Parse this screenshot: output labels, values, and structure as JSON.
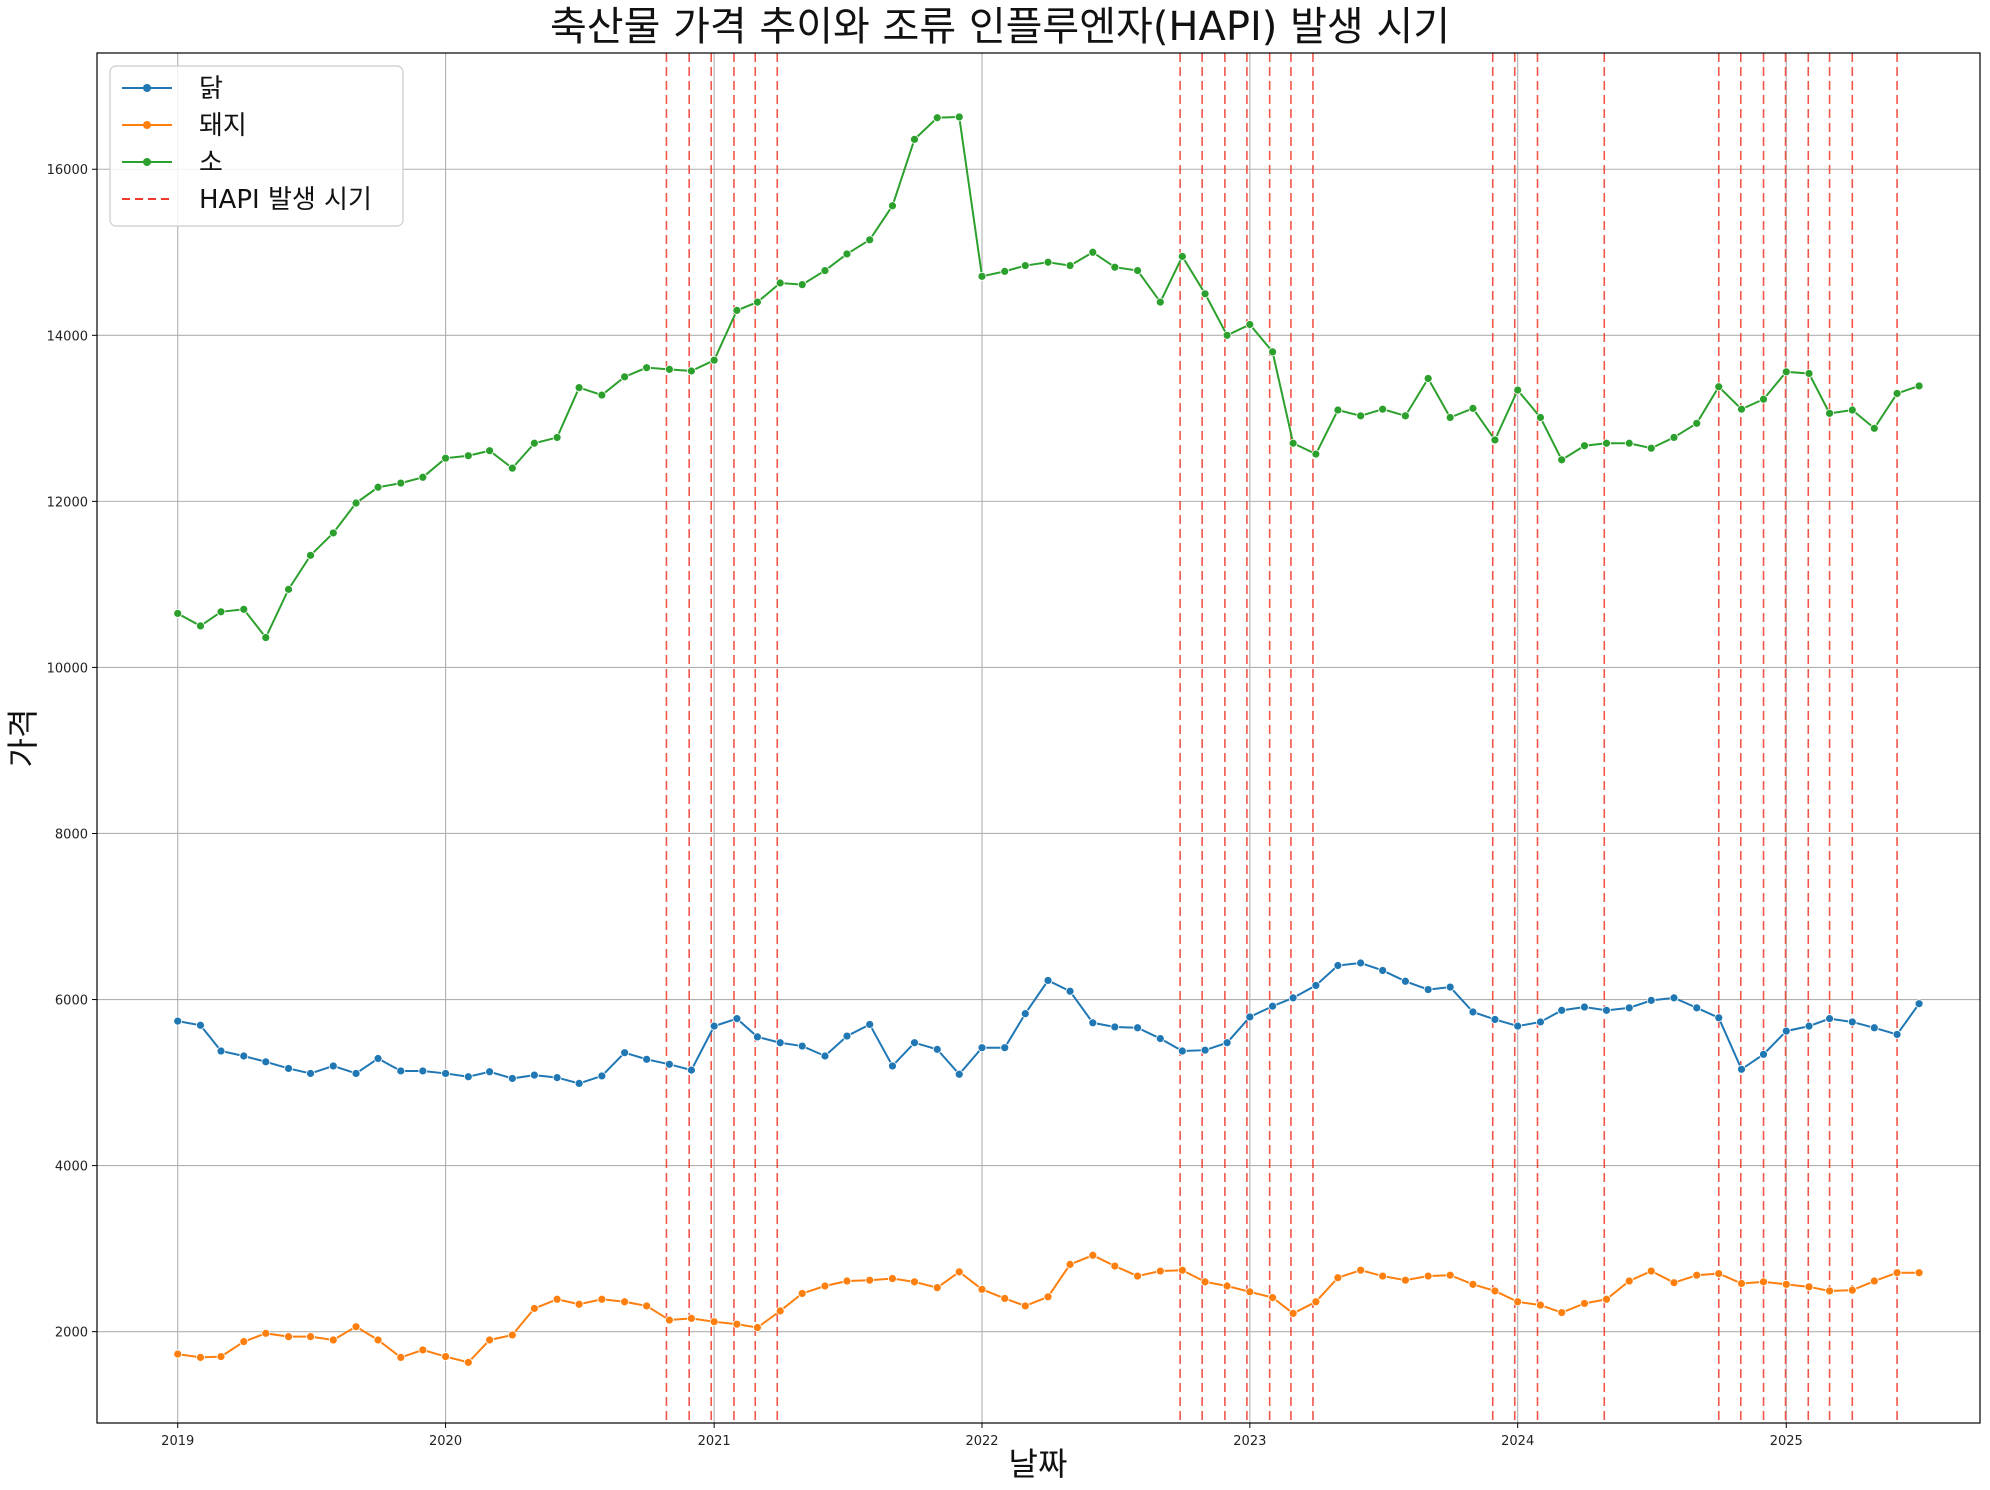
{
  "chart_data": {
    "type": "line",
    "title": "축산물 가격 추이와 조류 인플루엔자(HAPI) 발생 시기",
    "xlabel": "날짜",
    "ylabel": "가격",
    "x_ticks": [
      "2019",
      "2020",
      "2021",
      "2022",
      "2023",
      "2024",
      "2025"
    ],
    "y_ticks": [
      2000,
      4000,
      6000,
      8000,
      10000,
      12000,
      14000,
      16000
    ],
    "xlim": [
      "2018-09-13",
      "2025-09-22"
    ],
    "ylim": [
      900,
      17400
    ],
    "grid": true,
    "legend_position": "top-left",
    "x": [
      "2019-01",
      "2019-02",
      "2019-03",
      "2019-04",
      "2019-05",
      "2019-06",
      "2019-07",
      "2019-08",
      "2019-09",
      "2019-10",
      "2019-11",
      "2019-12",
      "2020-01",
      "2020-02",
      "2020-03",
      "2020-04",
      "2020-05",
      "2020-06",
      "2020-07",
      "2020-08",
      "2020-09",
      "2020-10",
      "2020-11",
      "2020-12",
      "2021-01",
      "2021-02",
      "2021-03",
      "2021-04",
      "2021-05",
      "2021-06",
      "2021-07",
      "2021-08",
      "2021-09",
      "2021-10",
      "2021-11",
      "2021-12",
      "2022-01",
      "2022-02",
      "2022-03",
      "2022-04",
      "2022-05",
      "2022-06",
      "2022-07",
      "2022-08",
      "2022-09",
      "2022-10",
      "2022-11",
      "2022-12",
      "2023-01",
      "2023-02",
      "2023-03",
      "2023-04",
      "2023-05",
      "2023-06",
      "2023-07",
      "2023-08",
      "2023-09",
      "2023-10",
      "2023-11",
      "2023-12",
      "2024-01",
      "2024-02",
      "2024-03",
      "2024-04",
      "2024-05",
      "2024-06",
      "2024-07",
      "2024-08",
      "2024-09",
      "2024-10",
      "2024-11",
      "2024-12",
      "2025-01",
      "2025-02",
      "2025-03",
      "2025-04",
      "2025-05",
      "2025-06",
      "2025-07"
    ],
    "series": [
      {
        "name": "닭",
        "color": "#1f77b4",
        "values": [
          5740,
          5690,
          5380,
          5320,
          5250,
          5170,
          5110,
          5200,
          5110,
          5290,
          5140,
          5140,
          5110,
          5070,
          5130,
          5050,
          5090,
          5060,
          4990,
          5080,
          5360,
          5280,
          5220,
          5150,
          5680,
          5770,
          5550,
          5480,
          5440,
          5320,
          5560,
          5700,
          5200,
          5480,
          5400,
          5100,
          5420,
          5420,
          5830,
          6230,
          6100,
          5720,
          5670,
          5660,
          5530,
          5380,
          5390,
          5480,
          5790,
          5920,
          6020,
          6170,
          6410,
          6440,
          6350,
          6220,
          6120,
          6150,
          5850,
          5760,
          5680,
          5730,
          5870,
          5910,
          5870,
          5900,
          5990,
          6020,
          5900,
          5780,
          5160,
          5340,
          5620,
          5680,
          5770,
          5730,
          5660,
          5580,
          5950
        ]
      },
      {
        "name": "돼지",
        "color": "#ff7f0e",
        "values": [
          1730,
          1690,
          1700,
          1880,
          1980,
          1940,
          1940,
          1900,
          2060,
          1900,
          1690,
          1780,
          1700,
          1630,
          1900,
          1960,
          2280,
          2390,
          2330,
          2390,
          2360,
          2310,
          2140,
          2160,
          2120,
          2090,
          2050,
          2250,
          2460,
          2550,
          2610,
          2620,
          2640,
          2600,
          2530,
          2720,
          2510,
          2400,
          2310,
          2420,
          2810,
          2920,
          2790,
          2670,
          2730,
          2740,
          2600,
          2550,
          2480,
          2410,
          2220,
          2360,
          2650,
          2740,
          2670,
          2620,
          2670,
          2680,
          2570,
          2490,
          2360,
          2320,
          2230,
          2340,
          2390,
          2610,
          2730,
          2590,
          2680,
          2700,
          2580,
          2600,
          2570,
          2540,
          2490,
          2500,
          2610,
          2710,
          2710
        ]
      },
      {
        "name": "소",
        "color": "#2ca02c",
        "values": [
          10650,
          10500,
          10670,
          10700,
          10360,
          10940,
          11350,
          11620,
          11980,
          12170,
          12220,
          12290,
          12520,
          12550,
          12610,
          12400,
          12700,
          12770,
          13370,
          13280,
          13500,
          13610,
          13590,
          13570,
          13700,
          14300,
          14400,
          14630,
          14610,
          14780,
          14980,
          15150,
          15560,
          16360,
          16620,
          16630,
          14710,
          14770,
          14840,
          14880,
          14840,
          15000,
          14820,
          14780,
          14400,
          14950,
          14500,
          14000,
          14130,
          13800,
          12700,
          12570,
          13100,
          13030,
          13110,
          13030,
          13480,
          13010,
          13120,
          12740,
          13340,
          13010,
          12500,
          12670,
          12700,
          12700,
          12640,
          12770,
          12940,
          13380,
          13110,
          13230,
          13560,
          13540,
          13060,
          13100,
          12880,
          13300,
          13390
        ]
      }
    ],
    "hapi_label": "HAPI 발생 시기",
    "hapi_color": "#f0392b",
    "hapi_dates": [
      "2020-10-28",
      "2020-11-28",
      "2020-12-28",
      "2021-01-28",
      "2021-02-26",
      "2021-03-28",
      "2022-09-28",
      "2022-10-28",
      "2022-11-28",
      "2022-12-28",
      "2023-01-28",
      "2023-02-26",
      "2023-03-28",
      "2023-11-28",
      "2023-12-28",
      "2024-01-28",
      "2024-04-28",
      "2024-10-01",
      "2024-10-31",
      "2024-12-01",
      "2024-12-31",
      "2025-01-31",
      "2025-03-01",
      "2025-04-01",
      "2025-06-01"
    ]
  }
}
